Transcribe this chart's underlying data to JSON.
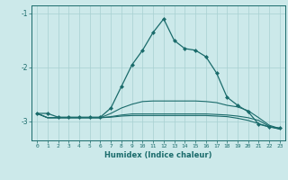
{
  "xlabel": "Humidex (Indice chaleur)",
  "bg_color": "#cce9ea",
  "grid_color": "#a8d0d1",
  "line_color": "#1a6b6b",
  "x": [
    0,
    1,
    2,
    3,
    4,
    5,
    6,
    7,
    8,
    9,
    10,
    11,
    12,
    13,
    14,
    15,
    16,
    17,
    18,
    19,
    20,
    21,
    22,
    23
  ],
  "curve1": [
    -2.85,
    -2.85,
    -2.92,
    -2.92,
    -2.92,
    -2.92,
    -2.92,
    -2.75,
    -2.35,
    -1.95,
    -1.68,
    -1.35,
    -1.1,
    -1.5,
    -1.65,
    -1.68,
    -1.8,
    -2.1,
    -2.55,
    -2.7,
    -2.82,
    -3.05,
    -3.1,
    -3.12
  ],
  "curve2": [
    -2.85,
    -2.93,
    -2.93,
    -2.93,
    -2.93,
    -2.93,
    -2.93,
    -2.85,
    -2.75,
    -2.68,
    -2.63,
    -2.62,
    -2.62,
    -2.62,
    -2.62,
    -2.62,
    -2.63,
    -2.65,
    -2.7,
    -2.73,
    -2.8,
    -2.93,
    -3.07,
    -3.13
  ],
  "curve3": [
    -2.85,
    -2.93,
    -2.93,
    -2.93,
    -2.93,
    -2.93,
    -2.93,
    -2.91,
    -2.88,
    -2.86,
    -2.86,
    -2.86,
    -2.86,
    -2.86,
    -2.86,
    -2.86,
    -2.86,
    -2.87,
    -2.88,
    -2.9,
    -2.93,
    -2.98,
    -3.09,
    -3.14
  ],
  "curve4": [
    -2.85,
    -2.93,
    -2.93,
    -2.93,
    -2.93,
    -2.93,
    -2.93,
    -2.92,
    -2.9,
    -2.89,
    -2.89,
    -2.89,
    -2.89,
    -2.89,
    -2.89,
    -2.89,
    -2.89,
    -2.9,
    -2.91,
    -2.94,
    -2.98,
    -3.04,
    -3.1,
    -3.14
  ],
  "ylim": [
    -3.35,
    -0.85
  ],
  "yticks": [
    -3.0,
    -2.0,
    -1.0
  ],
  "xlim": [
    -0.5,
    23.5
  ]
}
